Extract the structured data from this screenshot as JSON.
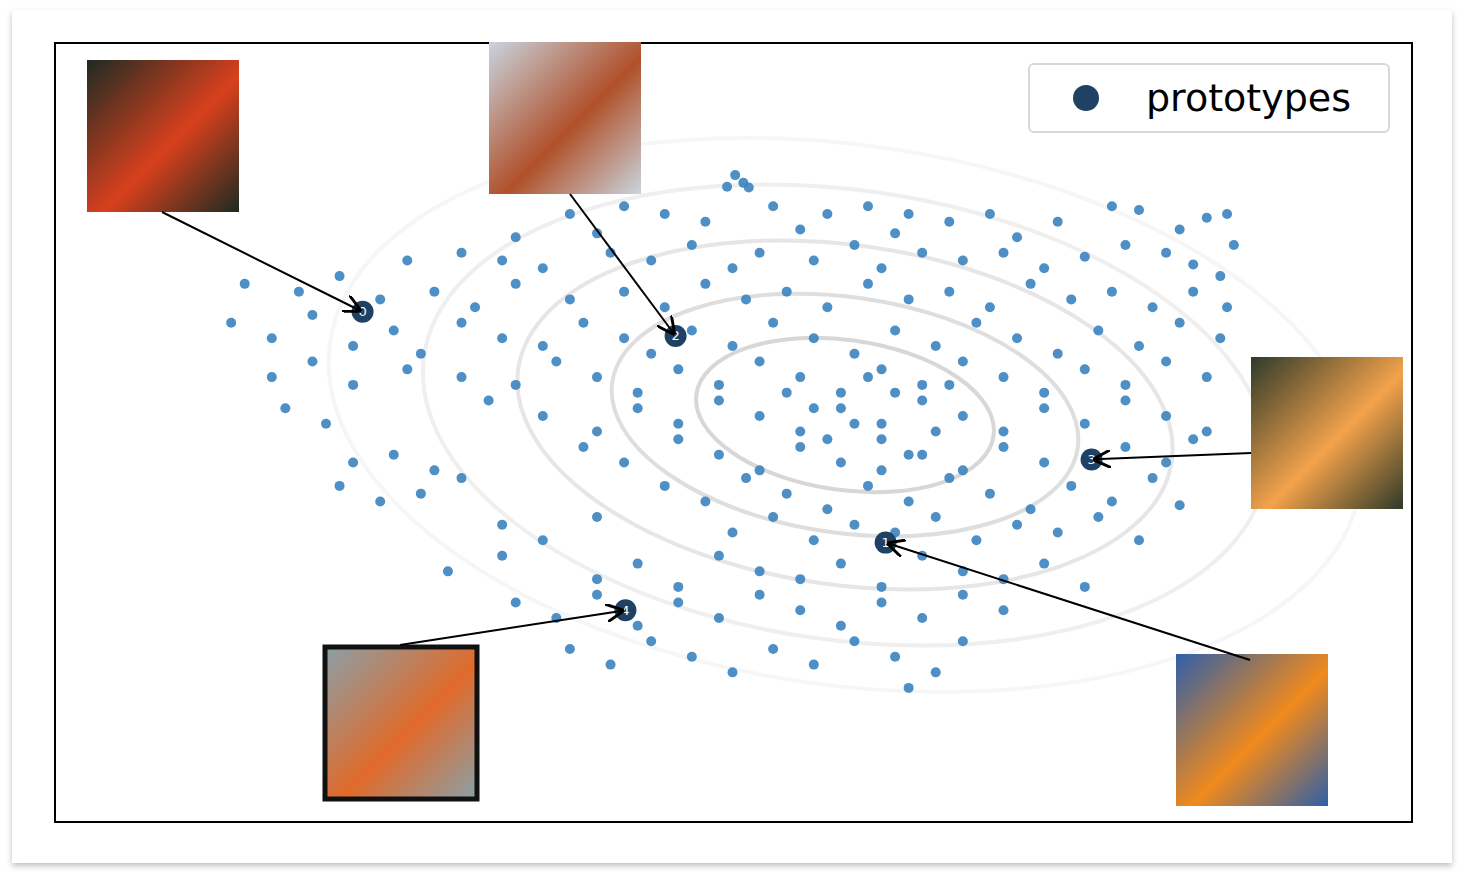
{
  "chart_data": {
    "type": "scatter",
    "xlim": [
      0,
      100
    ],
    "ylim": [
      0,
      100
    ],
    "tick_labels": false,
    "grid": false,
    "legend": "upper right",
    "series": [
      {
        "color": "#3b84c0",
        "marker": "circle",
        "points": [
          [
            50.2,
            83
          ],
          [
            50.8,
            82
          ],
          [
            49.6,
            81.5
          ],
          [
            51.2,
            81.4
          ],
          [
            38,
            78
          ],
          [
            42,
            79
          ],
          [
            45,
            78
          ],
          [
            48,
            77
          ],
          [
            53,
            79
          ],
          [
            57,
            78
          ],
          [
            60,
            79
          ],
          [
            63,
            78
          ],
          [
            66,
            77
          ],
          [
            69,
            78
          ],
          [
            74,
            77
          ],
          [
            78,
            79
          ],
          [
            80,
            78.5
          ],
          [
            85,
            77.5
          ],
          [
            86.5,
            78
          ],
          [
            83,
            76
          ],
          [
            34,
            75
          ],
          [
            40,
            75.5
          ],
          [
            55,
            76
          ],
          [
            62,
            75.5
          ],
          [
            71,
            75
          ],
          [
            26,
            72
          ],
          [
            30,
            73
          ],
          [
            33,
            72
          ],
          [
            36,
            71
          ],
          [
            41,
            73
          ],
          [
            44,
            72
          ],
          [
            47,
            74
          ],
          [
            50,
            71
          ],
          [
            52,
            73
          ],
          [
            56,
            72
          ],
          [
            59,
            74
          ],
          [
            61,
            71
          ],
          [
            64,
            73
          ],
          [
            67,
            72
          ],
          [
            70,
            73
          ],
          [
            73,
            71
          ],
          [
            76,
            72.5
          ],
          [
            79,
            74
          ],
          [
            82,
            73
          ],
          [
            84,
            71.5
          ],
          [
            87,
            74
          ],
          [
            86,
            70
          ],
          [
            14,
            69
          ],
          [
            18,
            68
          ],
          [
            21,
            70
          ],
          [
            24,
            67
          ],
          [
            28,
            68
          ],
          [
            31,
            66
          ],
          [
            34,
            69
          ],
          [
            38,
            67
          ],
          [
            42,
            68
          ],
          [
            45,
            66
          ],
          [
            48,
            69
          ],
          [
            51,
            67
          ],
          [
            54,
            68
          ],
          [
            57,
            66
          ],
          [
            60,
            69
          ],
          [
            63,
            67
          ],
          [
            66,
            68
          ],
          [
            69,
            66
          ],
          [
            72,
            69
          ],
          [
            75,
            67
          ],
          [
            78,
            68
          ],
          [
            81,
            66
          ],
          [
            84,
            68
          ],
          [
            86.5,
            66
          ],
          [
            13,
            64
          ],
          [
            16,
            62
          ],
          [
            19,
            65
          ],
          [
            22,
            61
          ],
          [
            25,
            63
          ],
          [
            27,
            60
          ],
          [
            30,
            64
          ],
          [
            33,
            62
          ],
          [
            36,
            61
          ],
          [
            39,
            64
          ],
          [
            42,
            62
          ],
          [
            44,
            60
          ],
          [
            47,
            63
          ],
          [
            50,
            61
          ],
          [
            53,
            64
          ],
          [
            56,
            62
          ],
          [
            59,
            60
          ],
          [
            62,
            63
          ],
          [
            65,
            61
          ],
          [
            68,
            64
          ],
          [
            71,
            62
          ],
          [
            74,
            60
          ],
          [
            77,
            63
          ],
          [
            80,
            61
          ],
          [
            83,
            64
          ],
          [
            86,
            62
          ],
          [
            16,
            57
          ],
          [
            19,
            59
          ],
          [
            22,
            56
          ],
          [
            26,
            58
          ],
          [
            30,
            57
          ],
          [
            34,
            56
          ],
          [
            37,
            59
          ],
          [
            40,
            57
          ],
          [
            43,
            55
          ],
          [
            46,
            58
          ],
          [
            49,
            56
          ],
          [
            52,
            59
          ],
          [
            55,
            57
          ],
          [
            58,
            55
          ],
          [
            61,
            58
          ],
          [
            64,
            56
          ],
          [
            67,
            59
          ],
          [
            70,
            57
          ],
          [
            73,
            55
          ],
          [
            76,
            58
          ],
          [
            79,
            56
          ],
          [
            82,
            59
          ],
          [
            85,
            57
          ],
          [
            17,
            53
          ],
          [
            20,
            51
          ],
          [
            32,
            54
          ],
          [
            36,
            52
          ],
          [
            40,
            50
          ],
          [
            43,
            53
          ],
          [
            46,
            51
          ],
          [
            49,
            54
          ],
          [
            52,
            52
          ],
          [
            55,
            50
          ],
          [
            58,
            53
          ],
          [
            61,
            51
          ],
          [
            64,
            54
          ],
          [
            67,
            52
          ],
          [
            70,
            50
          ],
          [
            73,
            53
          ],
          [
            76,
            51
          ],
          [
            79,
            54
          ],
          [
            82,
            52
          ],
          [
            85,
            50
          ],
          [
            22,
            46
          ],
          [
            25,
            47
          ],
          [
            28,
            45
          ],
          [
            39,
            48
          ],
          [
            42,
            46
          ],
          [
            46,
            49
          ],
          [
            49,
            47
          ],
          [
            52,
            45
          ],
          [
            55,
            48
          ],
          [
            58,
            46
          ],
          [
            61,
            49
          ],
          [
            64,
            47
          ],
          [
            67,
            45
          ],
          [
            70,
            48
          ],
          [
            73,
            46
          ],
          [
            79,
            48
          ],
          [
            82,
            46
          ],
          [
            84,
            49
          ],
          [
            21,
            43
          ],
          [
            24,
            41
          ],
          [
            27,
            42
          ],
          [
            30,
            44
          ],
          [
            45,
            43
          ],
          [
            48,
            41
          ],
          [
            51,
            44
          ],
          [
            54,
            42
          ],
          [
            57,
            40
          ],
          [
            60,
            43
          ],
          [
            63,
            41
          ],
          [
            66,
            44
          ],
          [
            69,
            42
          ],
          [
            72,
            40
          ],
          [
            75,
            43
          ],
          [
            78,
            41
          ],
          [
            81,
            44
          ],
          [
            83,
            40.5
          ],
          [
            33,
            38
          ],
          [
            36,
            36
          ],
          [
            40,
            39
          ],
          [
            50,
            37
          ],
          [
            53,
            39
          ],
          [
            56,
            36
          ],
          [
            59,
            38
          ],
          [
            62,
            37
          ],
          [
            65,
            39
          ],
          [
            68,
            36
          ],
          [
            71,
            38
          ],
          [
            74,
            37
          ],
          [
            77,
            39
          ],
          [
            80,
            36
          ],
          [
            29,
            32
          ],
          [
            33,
            34
          ],
          [
            40,
            31
          ],
          [
            43,
            33
          ],
          [
            46,
            30
          ],
          [
            49,
            34
          ],
          [
            52,
            32
          ],
          [
            55,
            31
          ],
          [
            58,
            33
          ],
          [
            61,
            30
          ],
          [
            64,
            34
          ],
          [
            67,
            32
          ],
          [
            70,
            31
          ],
          [
            73,
            33
          ],
          [
            76,
            30
          ],
          [
            34,
            28
          ],
          [
            37,
            26
          ],
          [
            40,
            29
          ],
          [
            43,
            25
          ],
          [
            46,
            28
          ],
          [
            49,
            26
          ],
          [
            52,
            29
          ],
          [
            55,
            27
          ],
          [
            58,
            25
          ],
          [
            61,
            28
          ],
          [
            64,
            26
          ],
          [
            67,
            29
          ],
          [
            70,
            27
          ],
          [
            38,
            22
          ],
          [
            41,
            20
          ],
          [
            44,
            23
          ],
          [
            47,
            21
          ],
          [
            50,
            19
          ],
          [
            53,
            22
          ],
          [
            56,
            20
          ],
          [
            59,
            23
          ],
          [
            62,
            21
          ],
          [
            65,
            19
          ],
          [
            67,
            23
          ],
          [
            63,
            17
          ],
          [
            56,
            53
          ],
          [
            59,
            51
          ],
          [
            62,
            55
          ],
          [
            65,
            50
          ],
          [
            60,
            57
          ],
          [
            57,
            49
          ],
          [
            63,
            47
          ],
          [
            54,
            55
          ],
          [
            66,
            56
          ],
          [
            61,
            45
          ]
        ]
      },
      {
        "name": "prototypes",
        "color": "#1f4163",
        "marker": "circle",
        "labels": [
          "0",
          "1",
          "2",
          "3",
          "4"
        ],
        "points": [
          [
            22.7,
            65.4
          ],
          [
            61.3,
            35.7
          ],
          [
            45.8,
            62.3
          ],
          [
            76.5,
            46.4
          ],
          [
            42.1,
            27.0
          ]
        ]
      }
    ]
  }
}
